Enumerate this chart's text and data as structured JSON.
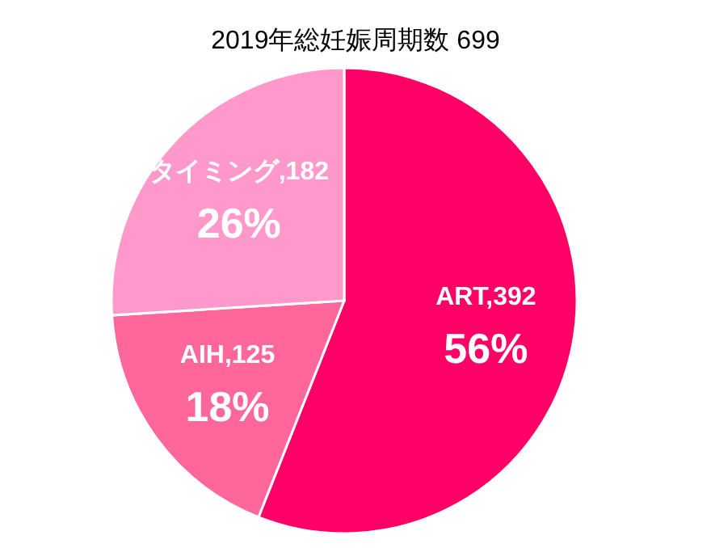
{
  "chart_data": {
    "type": "pie",
    "title": "2019年総妊娠周期数 699",
    "categories": [
      "ART,392",
      "AIH,125",
      "タイミング,182"
    ],
    "values": [
      56,
      18,
      26
    ],
    "colors": [
      "#ff0066",
      "#ff6699",
      "#ff99cc"
    ],
    "value_labels": [
      "56%",
      "18%",
      "26%"
    ],
    "legend": false
  }
}
